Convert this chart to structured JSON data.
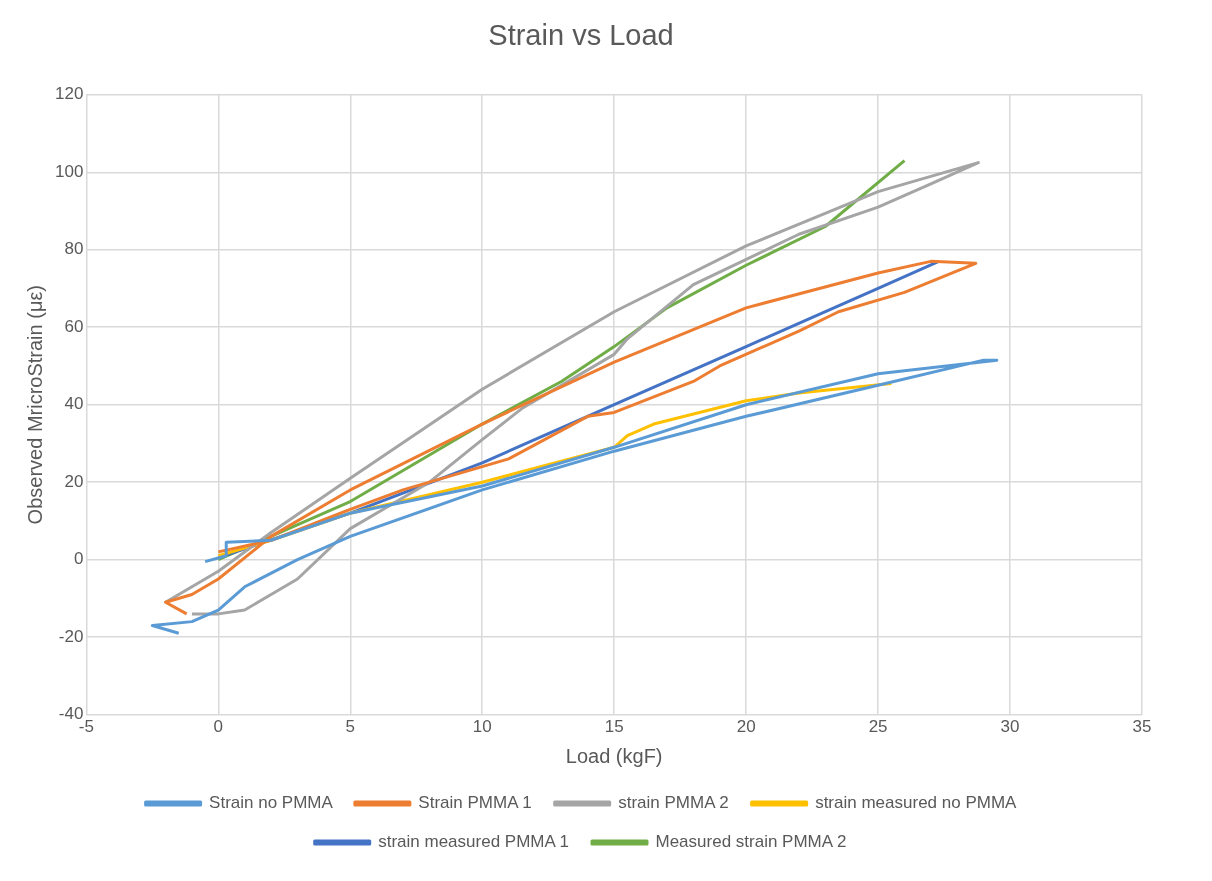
{
  "chart_data": {
    "type": "line",
    "title": "Strain vs Load",
    "xlabel": "Load (kgF)",
    "ylabel": "Observed MricroStrain (με)",
    "xlim": [
      -5,
      35
    ],
    "xticks": [
      -5,
      0,
      5,
      10,
      15,
      20,
      25,
      30,
      35
    ],
    "ylim": [
      -40,
      120
    ],
    "yticks": [
      -40,
      -20,
      0,
      20,
      40,
      60,
      80,
      100,
      120
    ],
    "grid": true,
    "legend": "bottom",
    "marker": "none",
    "line_style": "solid",
    "series": [
      {
        "name": "Strain no PMMA",
        "color": "#5b9bd5",
        "x": [
          -0.5,
          0.3,
          0.3,
          2,
          5,
          10,
          15,
          20,
          25,
          29.5,
          29,
          25,
          20,
          15,
          10,
          5,
          3,
          1,
          0,
          -1,
          -2.5,
          -1.5
        ],
        "values": [
          -0.5,
          1,
          4.5,
          5,
          12,
          19,
          29,
          40,
          48,
          51.5,
          51.5,
          45,
          37,
          28,
          18,
          6,
          0,
          -7,
          -13,
          -16,
          -17,
          -19
        ]
      },
      {
        "name": "Strain PMMA 1",
        "color": "#ed7d31",
        "x": [
          0,
          2,
          5,
          7,
          10,
          11,
          14,
          15,
          18,
          19,
          22,
          23.5,
          26,
          28.7,
          27,
          25,
          20,
          15,
          10,
          5,
          2,
          0,
          -1,
          -2,
          -1.2
        ],
        "values": [
          2,
          5,
          13,
          18,
          24,
          26,
          37,
          38,
          46,
          50,
          59,
          64,
          69,
          76.5,
          77,
          74,
          65,
          51,
          35,
          18,
          6,
          -5,
          -9,
          -11,
          -14
        ]
      },
      {
        "name": "strain PMMA 2",
        "color": "#a5a5a5",
        "x": [
          -1,
          0,
          1,
          2,
          3,
          5,
          8,
          10,
          11.5,
          15,
          15.5,
          18,
          22,
          25,
          27,
          28.8,
          25,
          20,
          15,
          10,
          5,
          2,
          0,
          -2
        ],
        "values": [
          -14,
          -14,
          -13,
          -9,
          -5,
          8,
          20,
          31,
          39,
          53,
          57,
          71,
          84,
          91,
          97,
          102.5,
          95,
          81,
          64,
          44,
          21,
          7,
          -3,
          -11
        ]
      },
      {
        "name": "strain measured no PMMA",
        "color": "#ffc000",
        "x": [
          0,
          2,
          5,
          10,
          15,
          15.5,
          16.5,
          20,
          22,
          25.5
        ],
        "values": [
          1,
          5,
          12,
          20,
          29,
          32,
          35,
          41,
          43,
          45.5
        ]
      },
      {
        "name": "strain measured PMMA 1",
        "color": "#4472c4",
        "x": [
          0,
          5,
          10,
          15,
          20,
          25,
          27.3
        ],
        "values": [
          0.5,
          12,
          25,
          40,
          55,
          70,
          77
        ]
      },
      {
        "name": "Measured strain PMMA 2",
        "color": "#70ad47",
        "x": [
          0,
          5,
          10,
          13,
          15,
          17,
          20,
          23,
          26
        ],
        "values": [
          0,
          15,
          35,
          46,
          55,
          65,
          76,
          86,
          103
        ]
      }
    ]
  }
}
